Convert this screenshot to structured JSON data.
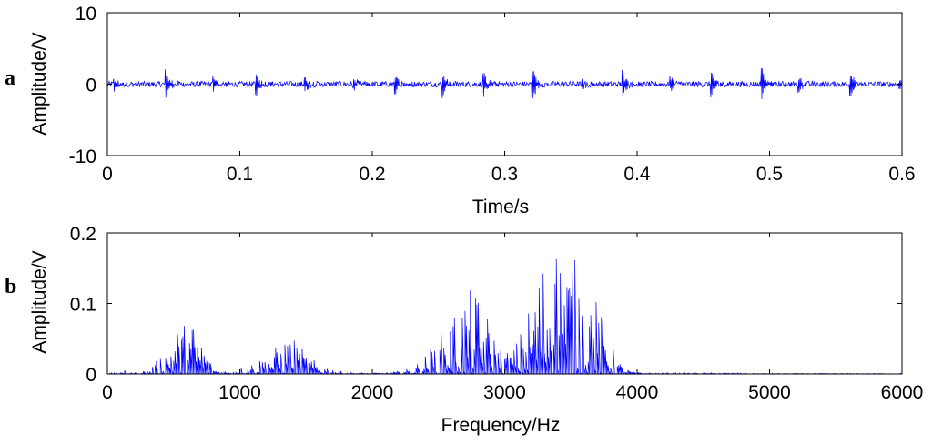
{
  "chart_data": [
    {
      "panel": "a",
      "type": "line",
      "xlabel": "Time/s",
      "ylabel": "Amplitude/V",
      "xlim": [
        0,
        0.6
      ],
      "ylim": [
        -10,
        10
      ],
      "xticks": [
        "0",
        "0.1",
        "0.2",
        "0.3",
        "0.4",
        "0.5",
        "0.6"
      ],
      "yticks": [
        "10",
        "0",
        "-10"
      ],
      "color": "#0000ff",
      "noise_level": 0.4,
      "impulses": [
        {
          "t": 0.005,
          "amp": 2.0
        },
        {
          "t": 0.044,
          "amp": 4.0
        },
        {
          "t": 0.08,
          "amp": 2.5
        },
        {
          "t": 0.112,
          "amp": 3.8
        },
        {
          "t": 0.149,
          "amp": 2.3
        },
        {
          "t": 0.186,
          "amp": 1.6
        },
        {
          "t": 0.217,
          "amp": 2.8
        },
        {
          "t": 0.253,
          "amp": 3.6
        },
        {
          "t": 0.284,
          "amp": 3.5
        },
        {
          "t": 0.321,
          "amp": 5.2
        },
        {
          "t": 0.358,
          "amp": 1.5
        },
        {
          "t": 0.389,
          "amp": 4.2
        },
        {
          "t": 0.425,
          "amp": 2.6
        },
        {
          "t": 0.456,
          "amp": 3.5
        },
        {
          "t": 0.494,
          "amp": 5.8
        },
        {
          "t": 0.522,
          "amp": 2.2
        },
        {
          "t": 0.561,
          "amp": 3.7
        },
        {
          "t": 0.598,
          "amp": 1.6
        }
      ]
    },
    {
      "panel": "b",
      "type": "line",
      "xlabel": "Frequency/Hz",
      "ylabel": "Amplitude/V",
      "xlim": [
        0,
        6000
      ],
      "ylim": [
        0,
        0.2
      ],
      "xticks": [
        "0",
        "1000",
        "2000",
        "3000",
        "4000",
        "5000",
        "6000"
      ],
      "yticks": [
        "0.2",
        "0.1",
        "0"
      ],
      "color": "#0000ff",
      "bands": [
        {
          "center": 550,
          "width": 110,
          "peak": 0.065
        },
        {
          "center": 680,
          "width": 60,
          "peak": 0.035
        },
        {
          "center": 1250,
          "width": 160,
          "peak": 0.025
        },
        {
          "center": 1380,
          "width": 80,
          "peak": 0.03
        },
        {
          "center": 1550,
          "width": 120,
          "peak": 0.012
        },
        {
          "center": 2650,
          "width": 170,
          "peak": 0.075
        },
        {
          "center": 2800,
          "width": 110,
          "peak": 0.06
        },
        {
          "center": 3300,
          "width": 140,
          "peak": 0.11
        },
        {
          "center": 3500,
          "width": 160,
          "peak": 0.13
        },
        {
          "center": 3700,
          "width": 90,
          "peak": 0.04
        }
      ],
      "spikes": [
        {
          "x": 130,
          "y": 0.005
        },
        {
          "x": 3512,
          "y": 0.145
        },
        {
          "x": 3380,
          "y": 0.128
        },
        {
          "x": 2620,
          "y": 0.08
        },
        {
          "x": 525,
          "y": 0.075
        },
        {
          "x": 575,
          "y": 0.075
        },
        {
          "x": 1365,
          "y": 0.04
        }
      ]
    }
  ],
  "panels": {
    "a": {
      "letter": "a"
    },
    "b": {
      "letter": "b"
    }
  }
}
